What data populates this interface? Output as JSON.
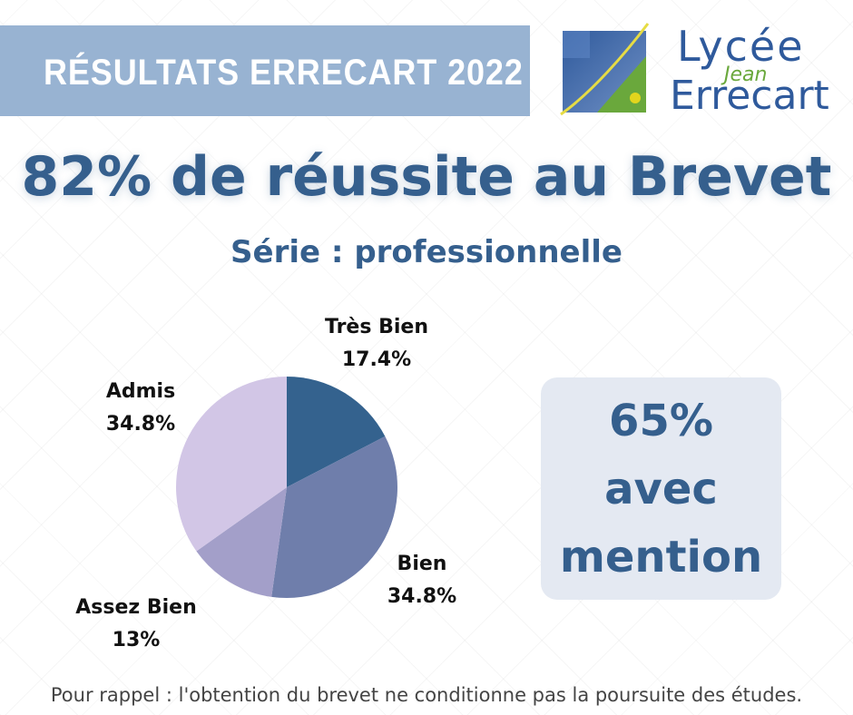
{
  "banner": {
    "title": "RÉSULTATS ERRECART 2022"
  },
  "logo": {
    "line1": "Lycée",
    "line2": "Jean",
    "line3": "Errecart"
  },
  "headline": "82% de réussite au Brevet",
  "subheadline": "Série : professionnelle",
  "chart_data": {
    "type": "pie",
    "title": "",
    "slices": [
      {
        "label": "Très Bien",
        "value": 17.4,
        "display": "17.4%",
        "color": "#34628e"
      },
      {
        "label": "Bien",
        "value": 34.8,
        "display": "34.8%",
        "color": "#6f7eab"
      },
      {
        "label": "Assez Bien",
        "value": 13,
        "display": "13%",
        "color": "#a39fc9"
      },
      {
        "label": "Admis",
        "value": 34.8,
        "display": "34.8%",
        "color": "#d2c6e6"
      }
    ]
  },
  "mention": {
    "line1": "65%",
    "line2": "avec",
    "line3": "mention"
  },
  "footer": "Pour rappel : l'obtention du brevet ne conditionne pas la poursuite des études.",
  "colors": {
    "primary": "#355f8d",
    "banner": "#98b3d2",
    "logo_green": "#6aa83c",
    "logo_yellow": "#e2d51d"
  }
}
